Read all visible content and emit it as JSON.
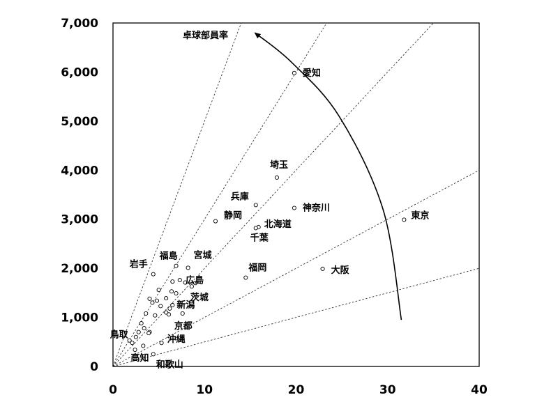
{
  "chart_data": {
    "type": "scatter",
    "xlim": [
      0,
      40
    ],
    "ylim": [
      0,
      7000
    ],
    "x_ticks": [
      0,
      10,
      20,
      30,
      40
    ],
    "y_ticks": [
      0,
      1000,
      2000,
      3000,
      4000,
      5000,
      6000,
      7000
    ],
    "x_tick_labels": [
      "0",
      "10",
      "20",
      "30",
      "40"
    ],
    "y_tick_labels": [
      "0",
      "1,000",
      "2,000",
      "3,000",
      "4,000",
      "5,000",
      "6,000",
      "7,000"
    ],
    "grid": false,
    "reference_line_slopes": [
      50,
      100,
      200,
      300,
      500
    ],
    "arrow_label": "卓球部員率",
    "arrow_path": [
      [
        31.5,
        950
      ],
      [
        29.5,
        3200
      ],
      [
        24.7,
        5100
      ],
      [
        19.5,
        6200
      ],
      [
        15.5,
        6800
      ]
    ],
    "labeled_points": [
      {
        "name": "愛知",
        "x": 19.8,
        "y": 5980
      },
      {
        "name": "埼玉",
        "x": 17.9,
        "y": 3850
      },
      {
        "name": "兵庫",
        "x": 15.6,
        "y": 3290
      },
      {
        "name": "神奈川",
        "x": 19.8,
        "y": 3230
      },
      {
        "name": "東京",
        "x": 31.8,
        "y": 2990
      },
      {
        "name": "静岡",
        "x": 11.2,
        "y": 2960
      },
      {
        "name": "北海道",
        "x": 15.9,
        "y": 2840
      },
      {
        "name": "千葉",
        "x": 15.6,
        "y": 2820
      },
      {
        "name": "宮城",
        "x": 8.2,
        "y": 2010
      },
      {
        "name": "福島",
        "x": 6.9,
        "y": 2050
      },
      {
        "name": "岩手",
        "x": 4.4,
        "y": 1880
      },
      {
        "name": "広島",
        "x": 9.0,
        "y": 1700
      },
      {
        "name": "福岡",
        "x": 14.5,
        "y": 1810
      },
      {
        "name": "大阪",
        "x": 22.9,
        "y": 1990
      },
      {
        "name": "茨城",
        "x": 8.6,
        "y": 1630
      },
      {
        "name": "新潟",
        "x": 6.5,
        "y": 1250
      },
      {
        "name": "京都",
        "x": 7.6,
        "y": 1080
      },
      {
        "name": "沖縄",
        "x": 5.3,
        "y": 480
      },
      {
        "name": "鳥取",
        "x": 1.8,
        "y": 530
      },
      {
        "name": "高知",
        "x": 2.4,
        "y": 340
      },
      {
        "name": "和歌山",
        "x": 4.4,
        "y": 250
      }
    ],
    "unlabeled_points": [
      {
        "x": 4.0,
        "y": 1380
      },
      {
        "x": 4.3,
        "y": 1300
      },
      {
        "x": 4.8,
        "y": 1340
      },
      {
        "x": 3.6,
        "y": 1080
      },
      {
        "x": 3.1,
        "y": 880
      },
      {
        "x": 3.4,
        "y": 780
      },
      {
        "x": 2.8,
        "y": 700
      },
      {
        "x": 4.0,
        "y": 700
      },
      {
        "x": 3.9,
        "y": 680
      },
      {
        "x": 5.2,
        "y": 1230
      },
      {
        "x": 5.8,
        "y": 1100
      },
      {
        "x": 6.1,
        "y": 1060
      },
      {
        "x": 6.2,
        "y": 1180
      },
      {
        "x": 5.8,
        "y": 1390
      },
      {
        "x": 6.4,
        "y": 1530
      },
      {
        "x": 6.9,
        "y": 1490
      },
      {
        "x": 7.3,
        "y": 1760
      },
      {
        "x": 7.9,
        "y": 1710
      },
      {
        "x": 6.5,
        "y": 1730
      },
      {
        "x": 2.5,
        "y": 600
      },
      {
        "x": 2.1,
        "y": 480
      },
      {
        "x": 3.3,
        "y": 420
      },
      {
        "x": 4.6,
        "y": 1040
      },
      {
        "x": 5.0,
        "y": 1560
      }
    ]
  }
}
